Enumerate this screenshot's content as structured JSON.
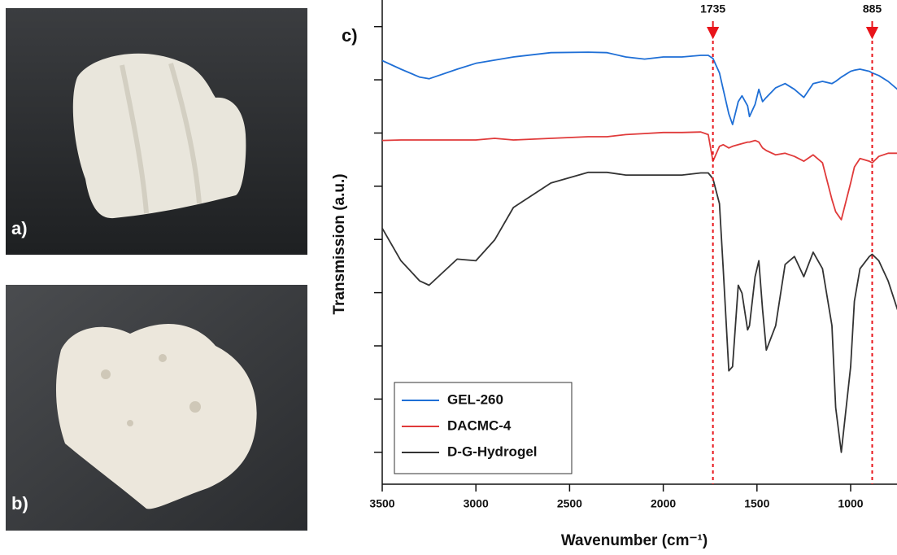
{
  "panel_labels": [
    "a)",
    "b)",
    "c)"
  ],
  "chart_data": {
    "type": "line",
    "x_label": "Wavenumber (cm⁻¹)",
    "y_label": "Transmission (a.u.)",
    "x": [
      3500,
      3400,
      3300,
      3250,
      3100,
      3000,
      2900,
      2800,
      2600,
      2400,
      2300,
      2200,
      2100,
      2000,
      1900,
      1800,
      1760,
      1735,
      1700,
      1680,
      1650,
      1630,
      1600,
      1580,
      1550,
      1540,
      1510,
      1490,
      1470,
      1450,
      1400,
      1350,
      1300,
      1250,
      1200,
      1150,
      1100,
      1080,
      1050,
      1000,
      980,
      950,
      900,
      885,
      850,
      800,
      750
    ],
    "series": [
      {
        "name": "GEL-260",
        "color": "#1f6fd6",
        "values": [
          8.36,
          8.2,
          8.05,
          8.02,
          8.2,
          8.31,
          8.37,
          8.43,
          8.51,
          8.52,
          8.51,
          8.43,
          8.39,
          8.43,
          8.43,
          8.46,
          8.46,
          8.4,
          8.13,
          7.82,
          7.36,
          7.16,
          7.59,
          7.7,
          7.51,
          7.31,
          7.54,
          7.82,
          7.59,
          7.67,
          7.85,
          7.93,
          7.82,
          7.67,
          7.93,
          7.97,
          7.93,
          7.97,
          8.05,
          8.16,
          8.18,
          8.2,
          8.16,
          8.13,
          8.08,
          7.97,
          7.82
        ]
      },
      {
        "name": "DACMC-4",
        "color": "#e03a3a",
        "values": [
          6.86,
          6.87,
          6.87,
          6.87,
          6.87,
          6.87,
          6.9,
          6.87,
          6.9,
          6.93,
          6.93,
          6.97,
          6.99,
          7.01,
          7.01,
          7.02,
          6.97,
          6.47,
          6.75,
          6.78,
          6.72,
          6.75,
          6.78,
          6.8,
          6.83,
          6.83,
          6.86,
          6.83,
          6.72,
          6.67,
          6.59,
          6.62,
          6.56,
          6.47,
          6.59,
          6.44,
          5.75,
          5.52,
          5.37,
          6.06,
          6.36,
          6.52,
          6.47,
          6.44,
          6.56,
          6.62,
          6.62
        ]
      },
      {
        "name": "D-G-Hydrogel",
        "color": "#333333",
        "values": [
          5.21,
          4.6,
          4.22,
          4.14,
          4.63,
          4.6,
          4.99,
          5.6,
          6.06,
          6.26,
          6.26,
          6.21,
          6.21,
          6.21,
          6.21,
          6.25,
          6.25,
          6.14,
          5.67,
          4.45,
          2.53,
          2.61,
          4.14,
          3.99,
          3.3,
          3.38,
          4.3,
          4.6,
          3.68,
          2.92,
          3.38,
          4.53,
          4.68,
          4.3,
          4.76,
          4.45,
          3.38,
          1.84,
          1.0,
          2.61,
          3.84,
          4.45,
          4.68,
          4.72,
          4.6,
          4.22,
          3.68
        ]
      }
    ],
    "markers": [
      1735,
      885
    ],
    "marker_color": "#e8141a",
    "xlim": [
      3500,
      750
    ],
    "xticks": [
      3500,
      3000,
      2500,
      2000,
      1500,
      1000
    ],
    "ylim": [
      0.4,
      9.5
    ],
    "yticks": [
      1,
      2,
      3,
      4,
      5,
      6,
      7,
      8,
      9
    ],
    "legend": "lower-left"
  }
}
